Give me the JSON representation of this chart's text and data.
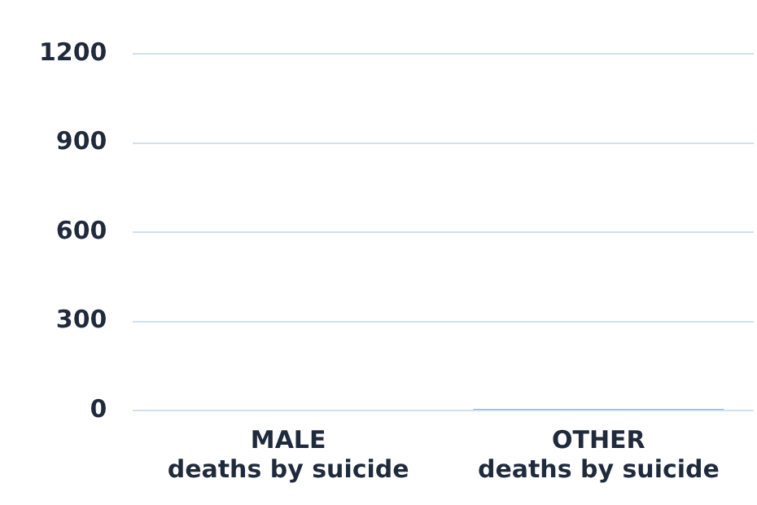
{
  "chart_data": {
    "type": "bar",
    "categories": [
      "MALE\ndeaths by suicide",
      "OTHER\ndeaths by suicide"
    ],
    "values": [
      0,
      5
    ],
    "color": "#5b9ccc",
    "ylim": [
      0,
      1200
    ],
    "yticks": [
      0,
      300,
      600,
      900,
      1200
    ],
    "grid": "y",
    "legend": false
  }
}
